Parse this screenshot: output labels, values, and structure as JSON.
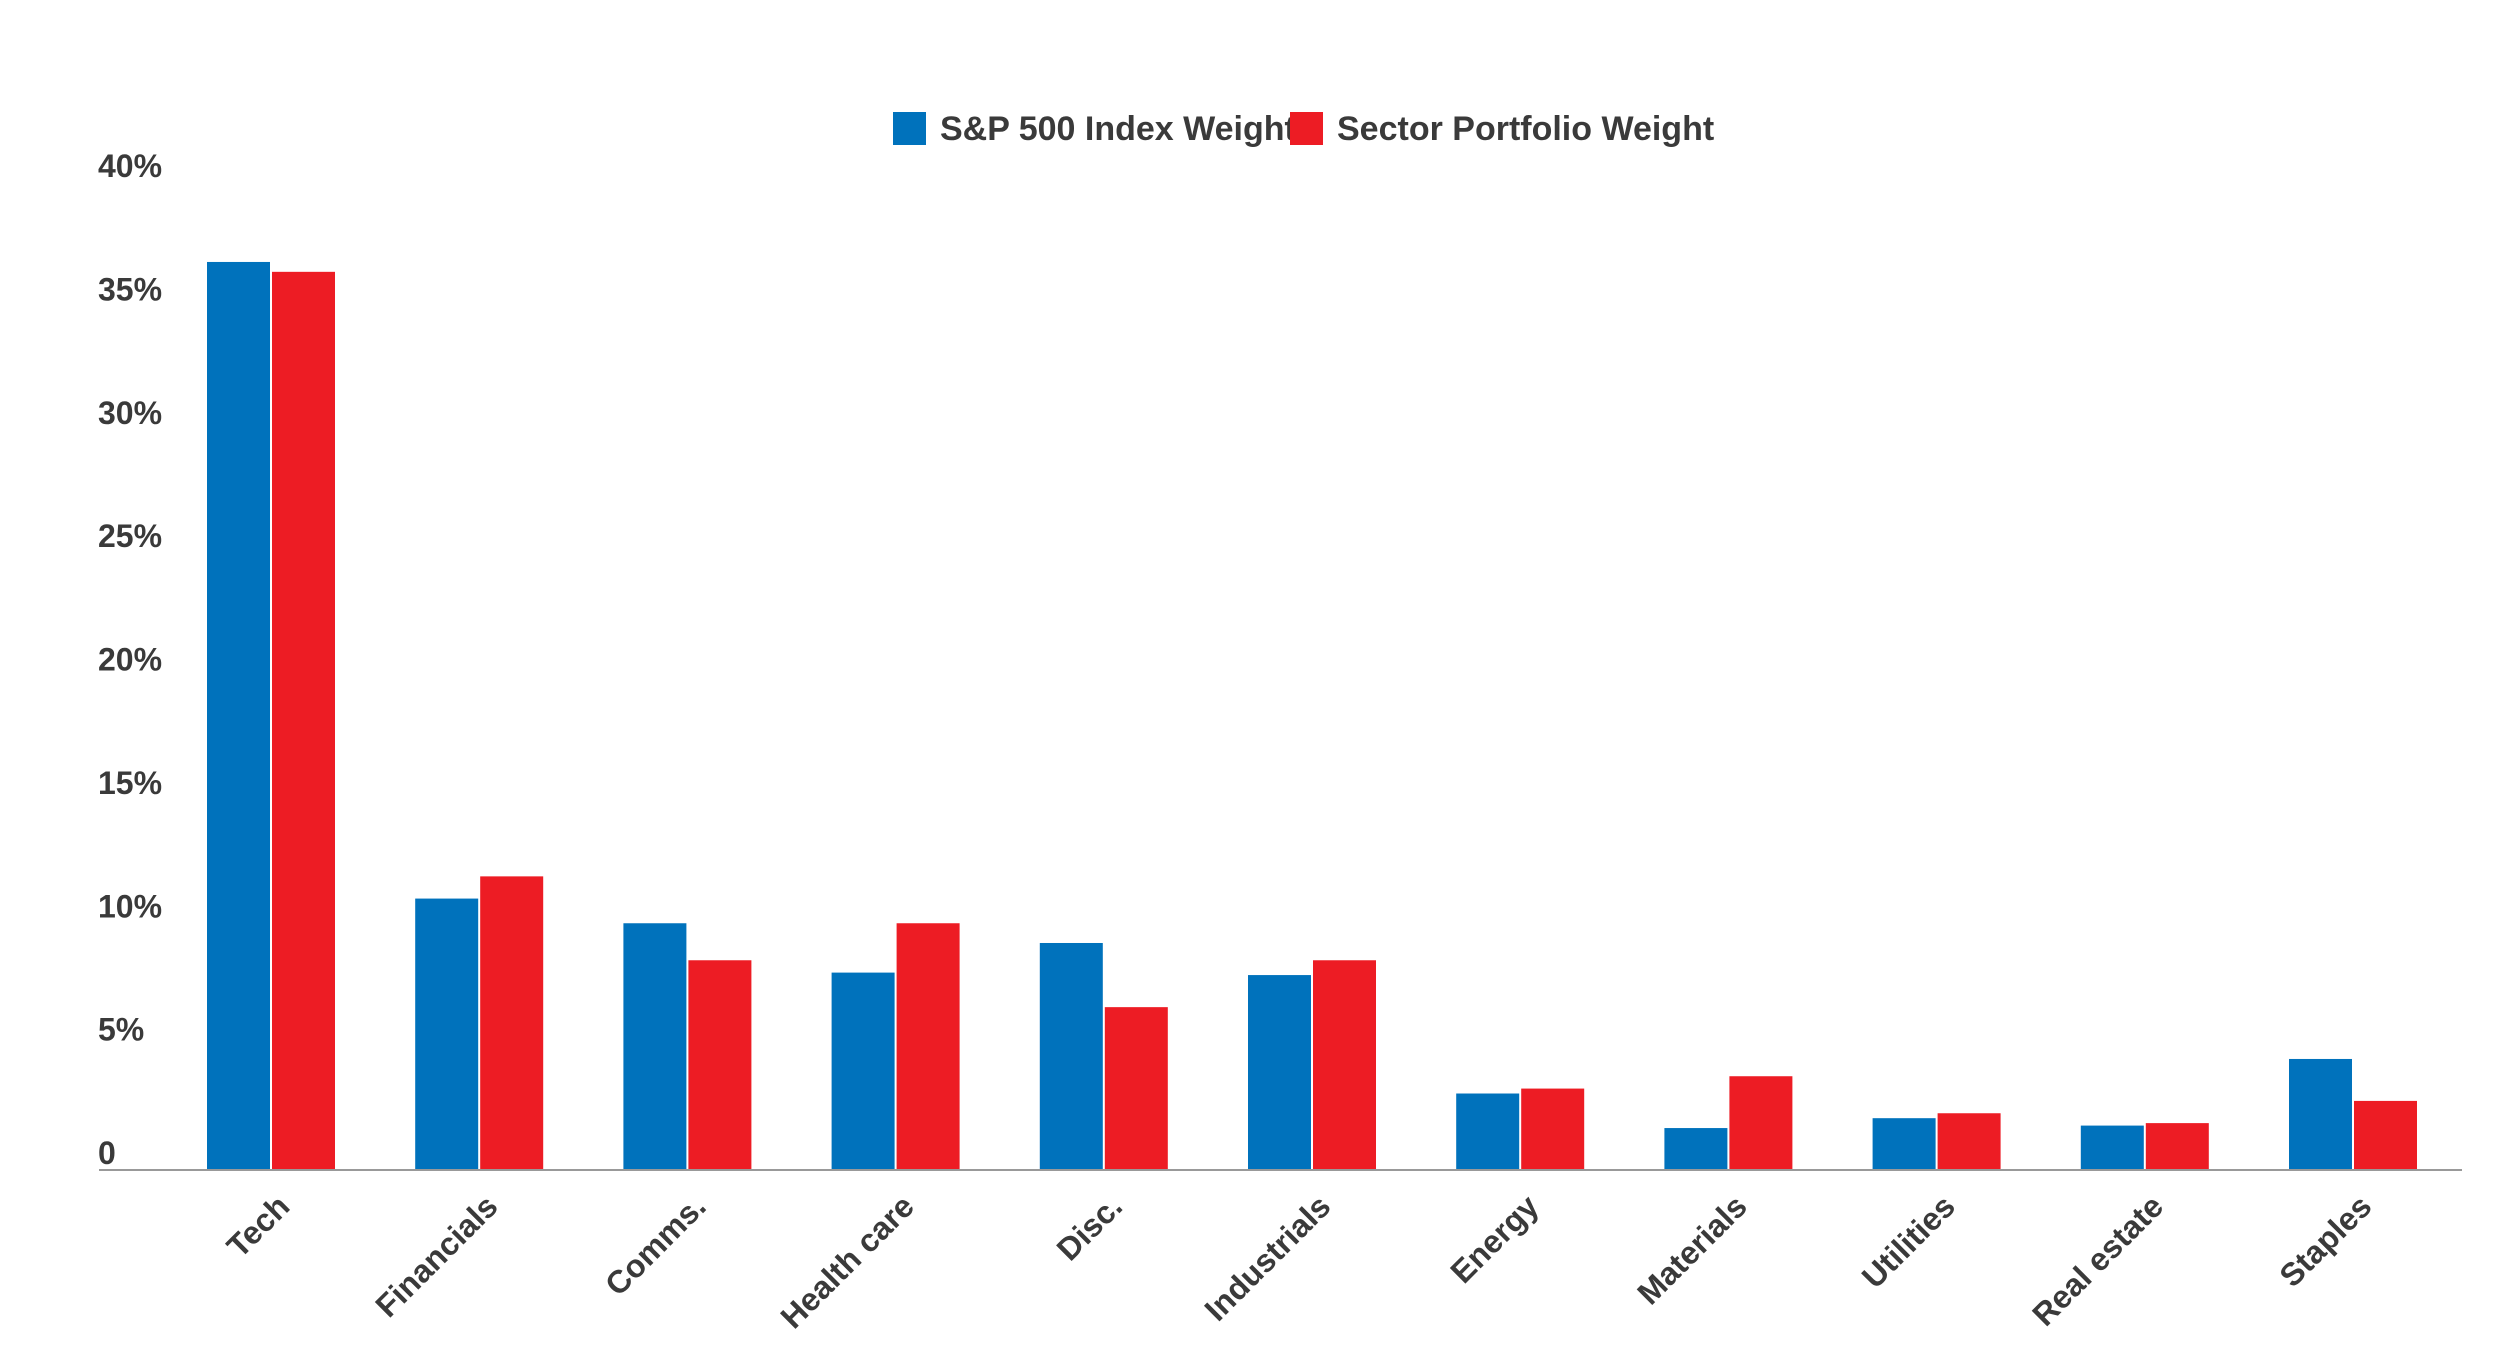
{
  "chart_data": {
    "type": "bar",
    "title": "",
    "xlabel": "",
    "ylabel": "",
    "ylim": [
      0,
      40
    ],
    "yticks": [
      0,
      5,
      10,
      15,
      20,
      25,
      30,
      35,
      40
    ],
    "ytick_labels": [
      "0",
      "5%",
      "10%",
      "15%",
      "20%",
      "25%",
      "30%",
      "35%",
      "40%"
    ],
    "grid": false,
    "legend_position": "top-center",
    "categories": [
      "Tech",
      "Financials",
      "Comms.",
      "Health care",
      "Disc.",
      "Industrials",
      "Energy",
      "Materials",
      "Utilities",
      "Real estate",
      "Staples"
    ],
    "series": [
      {
        "name": "S&P 500 Index Weight",
        "color": "#0072bc",
        "values": [
          36.8,
          11.0,
          10.0,
          8.0,
          9.2,
          7.9,
          3.1,
          1.7,
          2.1,
          1.8,
          4.5
        ]
      },
      {
        "name": "Sector Portfolio Weight",
        "color": "#ed1c24",
        "values": [
          36.4,
          11.9,
          8.5,
          10.0,
          6.6,
          8.5,
          3.3,
          3.8,
          2.3,
          1.9,
          2.8
        ]
      }
    ],
    "axis_color": "#999999"
  }
}
